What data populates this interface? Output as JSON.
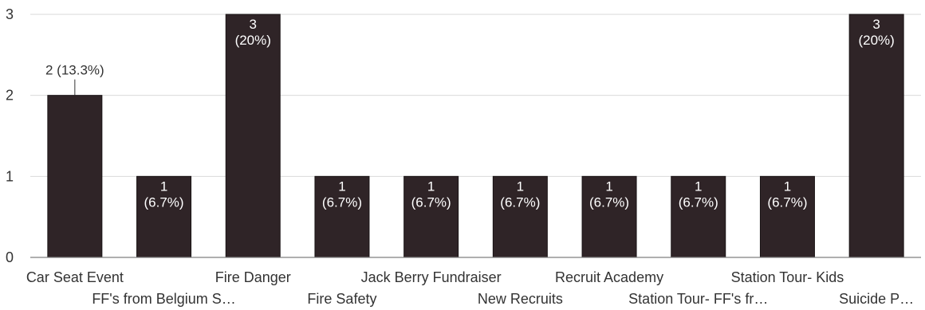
{
  "chart_data": {
    "type": "bar",
    "categories": [
      "Car Seat Event",
      "FF's from Belgium S…",
      "Fire Danger",
      "Fire Safety",
      "Jack Berry Fundraiser",
      "New Recruits",
      "Recruit Academy",
      "Station Tour- FF's fr…",
      "Station Tour- Kids",
      "Suicide P…"
    ],
    "values": [
      2,
      1,
      3,
      1,
      1,
      1,
      1,
      1,
      1,
      3
    ],
    "data_labels": [
      "2 (13.3%)",
      "1\n(6.7%)",
      "3\n(20%)",
      "1\n(6.7%)",
      "1\n(6.7%)",
      "1\n(6.7%)",
      "1\n(6.7%)",
      "1\n(6.7%)",
      "1\n(6.7%)",
      "3\n(20%)"
    ],
    "ylim": [
      0,
      3
    ],
    "yticks": [
      "0",
      "1",
      "2",
      "3"
    ],
    "colors": {
      "bar": "#2f2427",
      "gridline": "#d9d9d9",
      "axis": "#7f7f7f",
      "text": "#333333",
      "inside_label": "#ffffff"
    }
  }
}
